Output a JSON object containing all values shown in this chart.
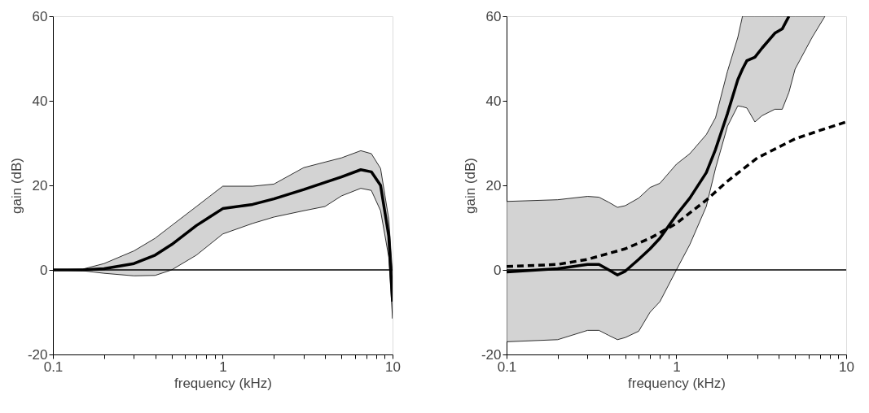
{
  "chart_data": [
    {
      "type": "line",
      "xlabel": "frequency (kHz)",
      "ylabel": "gain (dB)",
      "log": "x",
      "grid": false,
      "marker": "none",
      "xlim": [
        0.1,
        10
      ],
      "ylim": [
        -20,
        60
      ],
      "xticks": [
        {
          "value": 0.1,
          "label": "0.1"
        },
        {
          "value": 0.2,
          "label": null
        },
        {
          "value": 0.3,
          "label": null
        },
        {
          "value": 0.4,
          "label": null
        },
        {
          "value": 0.5,
          "label": null
        },
        {
          "value": 0.6,
          "label": null
        },
        {
          "value": 0.7,
          "label": null
        },
        {
          "value": 0.8,
          "label": null
        },
        {
          "value": 0.9,
          "label": null
        },
        1,
        {
          "value": 2,
          "label": null
        },
        {
          "value": 3,
          "label": null
        },
        {
          "value": 4,
          "label": null
        },
        {
          "value": 5,
          "label": null
        },
        {
          "value": 6,
          "label": null
        },
        {
          "value": 7,
          "label": null
        },
        {
          "value": 8,
          "label": null
        },
        {
          "value": 9,
          "label": null
        },
        10
      ],
      "yticks": [
        -20,
        0,
        20,
        40,
        60
      ],
      "ref_lines": [
        {
          "axis": "y",
          "value": 0,
          "color": "#000000"
        }
      ],
      "series": [
        {
          "color": "#000000",
          "line_style": "solid",
          "x": [
            0.1,
            0.15,
            0.2,
            0.3,
            0.4,
            0.5,
            0.7,
            1,
            1.5,
            2,
            3,
            4,
            5,
            6.5,
            7.5,
            8.5,
            9.5,
            10
          ],
          "values": [
            0,
            0,
            0.3,
            1.5,
            3.5,
            6,
            10.5,
            14.5,
            15.5,
            16.8,
            19,
            20.7,
            22,
            23.7,
            23.2,
            20,
            8,
            -7.5
          ],
          "upper": [
            0,
            0.2,
            1.5,
            4.5,
            7.5,
            10.5,
            15,
            19.8,
            19.8,
            20.3,
            24.2,
            25.5,
            26.5,
            28.2,
            27.5,
            24,
            12,
            -1
          ],
          "lower": [
            0,
            -0.2,
            -0.8,
            -1.4,
            -1.3,
            0,
            3.5,
            8.5,
            11,
            12.5,
            14,
            15,
            17.5,
            19.3,
            18.8,
            14,
            3,
            -11.5
          ]
        }
      ]
    },
    {
      "type": "line",
      "xlabel": "frequency (kHz)",
      "ylabel": "gain (dB)",
      "log": "x",
      "grid": false,
      "marker": "none",
      "xlim": [
        0.1,
        10
      ],
      "ylim": [
        -20,
        60
      ],
      "xticks": [
        {
          "value": 0.1,
          "label": "0.1"
        },
        {
          "value": 0.2,
          "label": null
        },
        {
          "value": 0.3,
          "label": null
        },
        {
          "value": 0.4,
          "label": null
        },
        {
          "value": 0.5,
          "label": null
        },
        {
          "value": 0.6,
          "label": null
        },
        {
          "value": 0.7,
          "label": null
        },
        {
          "value": 0.8,
          "label": null
        },
        {
          "value": 0.9,
          "label": null
        },
        1,
        {
          "value": 2,
          "label": null
        },
        {
          "value": 3,
          "label": null
        },
        {
          "value": 4,
          "label": null
        },
        {
          "value": 5,
          "label": null
        },
        {
          "value": 6,
          "label": null
        },
        {
          "value": 7,
          "label": null
        },
        {
          "value": 8,
          "label": null
        },
        {
          "value": 9,
          "label": null
        },
        10
      ],
      "yticks": [
        -20,
        0,
        20,
        40,
        60
      ],
      "ref_lines": [
        {
          "axis": "y",
          "value": 0,
          "color": "#000000"
        }
      ],
      "series": [
        {
          "color": "#000000",
          "line_style": "solid",
          "x": [
            0.1,
            0.2,
            0.3,
            0.35,
            0.4,
            0.45,
            0.5,
            0.6,
            0.7,
            0.8,
            1,
            1.2,
            1.5,
            1.7,
            2,
            2.3,
            2.45,
            2.6,
            2.9,
            3.2,
            3.8,
            4.2,
            4.6,
            5,
            6.3,
            7.5
          ],
          "values": [
            -0.5,
            0.3,
            1.3,
            1.3,
            0,
            -1.2,
            -0.3,
            2.5,
            5,
            7.5,
            13,
            17,
            23,
            28.5,
            37,
            45,
            47.5,
            49.5,
            50.3,
            52.5,
            56,
            57,
            60,
            null,
            null,
            null
          ],
          "upper": [
            16.2,
            16.6,
            17.4,
            17.2,
            16,
            14.8,
            15.2,
            17,
            19.5,
            20.5,
            25,
            27.5,
            32,
            36,
            47,
            55,
            60,
            60,
            60,
            60,
            60,
            60,
            60,
            60,
            60,
            60
          ],
          "lower": [
            -17,
            -16.5,
            -14.3,
            -14.3,
            -15.5,
            -16.5,
            -16,
            -14.5,
            -10,
            -7.5,
            0,
            6,
            15,
            24,
            34,
            38.8,
            38.6,
            38.3,
            35,
            36.5,
            38,
            38,
            42,
            47.5,
            55,
            60
          ]
        },
        {
          "color": "#000000",
          "line_style": "dashed",
          "x": [
            0.1,
            0.2,
            0.3,
            0.5,
            0.7,
            1,
            1.5,
            2,
            3,
            5,
            7,
            10
          ],
          "values": [
            0.8,
            1.3,
            2.5,
            5,
            7.5,
            11,
            16.5,
            21,
            26.5,
            31,
            33,
            35
          ]
        }
      ]
    }
  ]
}
